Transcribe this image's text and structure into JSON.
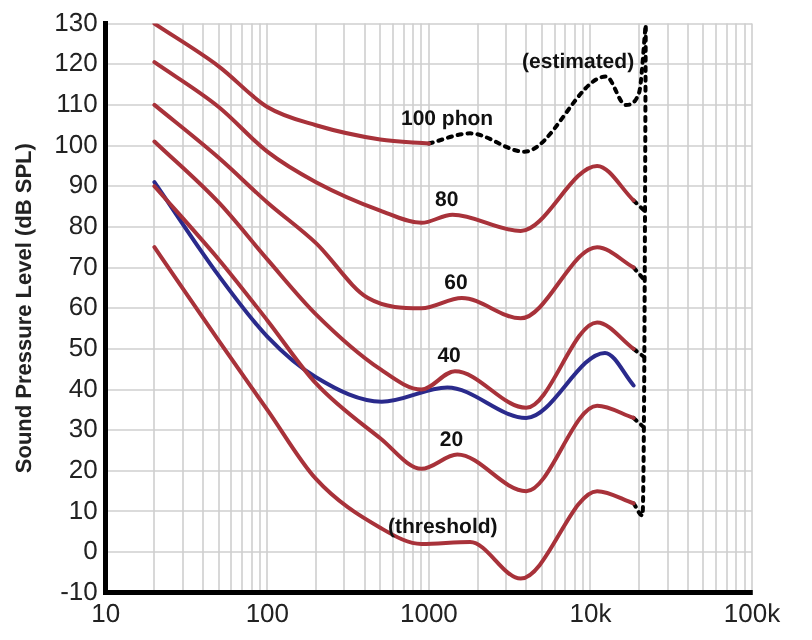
{
  "chart_data": {
    "type": "line",
    "ylabel": "Sound Pressure Level (dB SPL)",
    "log": "x",
    "grid": true,
    "legend": false,
    "marker": "none",
    "xlim": [
      10,
      100000
    ],
    "xticks": [
      10,
      {
        "value": 20,
        "label": null
      },
      {
        "value": 30,
        "label": null
      },
      {
        "value": 40,
        "label": null
      },
      {
        "value": 50,
        "label": null
      },
      {
        "value": 60,
        "label": null
      },
      {
        "value": 70,
        "label": null
      },
      {
        "value": 80,
        "label": null
      },
      {
        "value": 90,
        "label": null
      },
      100,
      {
        "value": 200,
        "label": null
      },
      {
        "value": 300,
        "label": null
      },
      {
        "value": 400,
        "label": null
      },
      {
        "value": 500,
        "label": null
      },
      {
        "value": 600,
        "label": null
      },
      {
        "value": 700,
        "label": null
      },
      {
        "value": 800,
        "label": null
      },
      {
        "value": 900,
        "label": null
      },
      1000,
      {
        "value": 2000,
        "label": null
      },
      {
        "value": 3000,
        "label": null
      },
      {
        "value": 4000,
        "label": null
      },
      {
        "value": 5000,
        "label": null
      },
      {
        "value": 6000,
        "label": null
      },
      {
        "value": 7000,
        "label": null
      },
      {
        "value": 8000,
        "label": null
      },
      {
        "value": 9000,
        "label": null
      },
      {
        "value": 10000,
        "label": "10k"
      },
      {
        "value": 20000,
        "label": null
      },
      {
        "value": 30000,
        "label": null
      },
      {
        "value": 40000,
        "label": null
      },
      {
        "value": 50000,
        "label": null
      },
      {
        "value": 60000,
        "label": null
      },
      {
        "value": 70000,
        "label": null
      },
      {
        "value": 80000,
        "label": null
      },
      {
        "value": 90000,
        "label": null
      },
      {
        "value": 100000,
        "label": "100k"
      }
    ],
    "ylim": [
      -10,
      130
    ],
    "yticks": [
      -10,
      0,
      10,
      20,
      30,
      40,
      50,
      60,
      70,
      80,
      90,
      100,
      110,
      120,
      130
    ],
    "series": [
      {
        "color": "#a8323a",
        "line_style": "solid",
        "x": [
          20,
          50,
          100,
          200,
          500,
          1000
        ],
        "values": [
          130,
          119.5,
          109.5,
          105,
          101.5,
          100.5
        ]
      },
      {
        "color": "#a8323a",
        "line_style": "solid",
        "x": [
          20,
          50,
          100,
          200,
          500,
          900,
          1400,
          3700,
          11000,
          18500
        ],
        "values": [
          120.5,
          109.5,
          98.5,
          91,
          84,
          81,
          83,
          79,
          95,
          86.5
        ]
      },
      {
        "color": "#a8323a",
        "line_style": "solid",
        "x": [
          20,
          50,
          100,
          200,
          420,
          900,
          1600,
          3700,
          11000,
          18500
        ],
        "values": [
          110,
          97,
          86,
          76,
          62.5,
          60,
          62.5,
          57.5,
          75,
          70
        ]
      },
      {
        "color": "#a8323a",
        "line_style": "solid",
        "x": [
          20,
          50,
          100,
          200,
          500,
          900,
          1450,
          4000,
          11000,
          18500
        ],
        "values": [
          101,
          86,
          72,
          58.5,
          45,
          40,
          44.5,
          35.5,
          56.5,
          50
        ]
      },
      {
        "color": "#a8323a",
        "line_style": "solid",
        "x": [
          20,
          50,
          100,
          200,
          500,
          900,
          1500,
          4000,
          11000,
          18500
        ],
        "values": [
          90,
          72,
          57,
          41.5,
          28,
          20.5,
          24,
          15,
          36,
          33
        ]
      },
      {
        "color": "#a8323a",
        "line_style": "solid",
        "x": [
          20,
          50,
          100,
          200,
          500,
          900,
          1800,
          3700,
          11000,
          18500
        ],
        "values": [
          75,
          52,
          35,
          18,
          6,
          2,
          2.5,
          -6.5,
          15,
          12
        ]
      },
      {
        "color": "#2a2a8c",
        "line_style": "solid",
        "x": [
          20,
          50,
          100,
          200,
          510,
          1300,
          4000,
          12300,
          18500
        ],
        "values": [
          91,
          68,
          53,
          43,
          37,
          40.5,
          33,
          49,
          41
        ]
      },
      {
        "color": "#000000",
        "line_style": "dotted",
        "x": [
          1000,
          1800,
          3900,
          12500,
          16500,
          20000,
          22000
        ],
        "values": [
          100.5,
          103,
          98.5,
          117,
          110,
          113,
          130
        ]
      },
      {
        "color": "#000000",
        "line_style": "dotted",
        "x": [
          18500,
          21000,
          21500,
          22000
        ],
        "values": [
          12,
          9,
          40,
          130
        ]
      },
      {
        "color": "#000000",
        "line_style": "dotted",
        "x": [
          18500,
          21500
        ],
        "values": [
          86.5,
          84
        ]
      },
      {
        "color": "#000000",
        "line_style": "dotted",
        "x": [
          18500,
          21500
        ],
        "values": [
          70,
          67
        ]
      },
      {
        "color": "#000000",
        "line_style": "dotted",
        "x": [
          18500,
          21500
        ],
        "values": [
          50,
          48
        ]
      },
      {
        "color": "#000000",
        "line_style": "dotted",
        "x": [
          18500,
          21000
        ],
        "values": [
          33,
          31
        ]
      }
    ],
    "annotations": [
      {
        "text": "100 phon",
        "x": 1800,
        "y": 103
      },
      {
        "text": "80",
        "x": 1400,
        "y": 83
      },
      {
        "text": "60",
        "x": 1600,
        "y": 62.5
      },
      {
        "text": "40",
        "x": 1450,
        "y": 44.5
      },
      {
        "text": "20",
        "x": 1500,
        "y": 24
      },
      {
        "text": "(threshold)",
        "x": 1800,
        "y": 2.5
      },
      {
        "text": "(estimated)",
        "x": 12500,
        "y": 117
      }
    ]
  }
}
